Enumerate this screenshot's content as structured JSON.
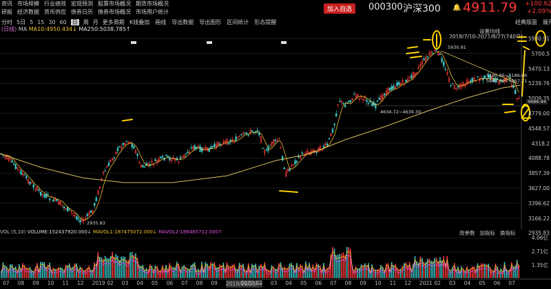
{
  "menu": {
    "row1": [
      "资讯",
      "市场规模",
      "行业绩效",
      "宏观预测",
      "股票市场概况",
      "期货市场概况"
    ],
    "row2": [
      "研报",
      "经济数据",
      "货币供应",
      "债券日历",
      "债券市场概况",
      "市场用户统计"
    ]
  },
  "header": {
    "add_watchlist": "加入自选",
    "code": "000300",
    "name": "沪深300",
    "price": "4911.79",
    "change": "+100.62",
    "change_pct": "+2.09%"
  },
  "periods": [
    "分时",
    "5日",
    "5",
    "15",
    "30",
    "60",
    "日",
    "周",
    "月",
    "更多周期"
  ],
  "active_period": "日",
  "tools": [
    "K线叠加",
    "画线",
    "导出数据",
    "导出图形",
    "区间统计",
    "形态提醒"
  ],
  "right_links": [
    "经典版面",
    "展开"
  ],
  "settings": "设置均线",
  "indicator_line": {
    "prefix": "(日线)",
    "ma_label": "MA",
    "ma10": "MA10:4950.434↓",
    "ma250": "MA250:5038.785↑"
  },
  "range_label": "2018/7/10-2021/8/27(740日)",
  "annotations": {
    "high": "5930.91",
    "mid1": "5190.86~5186.66",
    "mid2": "5080.00~5067.21",
    "current": "4686.94",
    "range2": "4634.72~4639.30",
    "low": "2935.83"
  },
  "y_axis": [
    "5930.91",
    "5700.5",
    "5470.13",
    "5239.76",
    "5009.35",
    "4779.00",
    "4548.57",
    "4318.2",
    "4088.78",
    "3857.39",
    "3627.00",
    "3396.62",
    "3166.22",
    "2935.83"
  ],
  "vol": {
    "label": "VOL (5,10)",
    "volume": "VOLUME:152437920.000↓",
    "mavol1": "MAVOL1:187475072.000↓",
    "mavol2": "MAVOL2:186485712.000↑",
    "buttons": [
      "改参数",
      "加指标",
      "换指标"
    ],
    "y_axis": [
      "4.06亿",
      "2.71亿",
      "1.35亿"
    ]
  },
  "x_axis": [
    "07",
    "08",
    "09",
    "10",
    "11",
    "12",
    "2019",
    "02",
    "03",
    "04",
    "05",
    "06",
    "07",
    "08",
    "09",
    "2019/09/23/一",
    "2020",
    "02",
    "03",
    "04",
    "05",
    "06",
    "07",
    "08",
    "09",
    "10",
    "11",
    "12",
    "2021",
    "02",
    "03",
    "04",
    "05",
    "06",
    "07"
  ],
  "colors": {
    "up": "#ff3a3a",
    "down": "#3cc8c8",
    "ma10": "#f0c030",
    "ma250": "#d8c060",
    "ink": "#ffd400"
  },
  "chart_data": {
    "type": "candlestick",
    "ylim": [
      2935.83,
      5930.91
    ],
    "title": "沪深300"
  }
}
